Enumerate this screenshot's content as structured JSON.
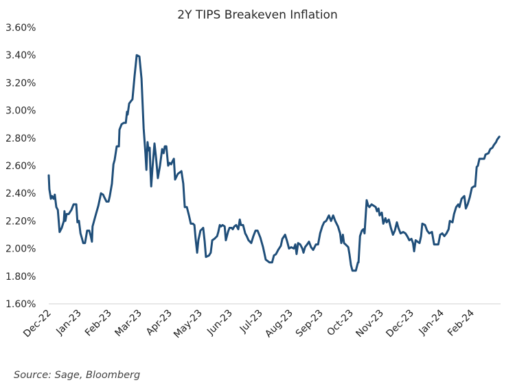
{
  "chart_data": {
    "type": "line",
    "title": "2Y TIPS Breakeven Inflation",
    "xlabel": "",
    "ylabel": "",
    "ylim": [
      1.6,
      3.6
    ],
    "y_ticks": [
      "3.60%",
      "3.40%",
      "3.20%",
      "3.00%",
      "2.80%",
      "2.60%",
      "2.40%",
      "2.20%",
      "2.00%",
      "1.80%",
      "1.60%"
    ],
    "y_tick_values": [
      3.6,
      3.4,
      3.2,
      3.0,
      2.8,
      2.6,
      2.4,
      2.2,
      2.0,
      1.8,
      1.6
    ],
    "x_ticks": [
      "Dec-22",
      "Jan-23",
      "Feb-23",
      "Mar-23",
      "Apr-23",
      "May-23",
      "Jun-23",
      "Jul-23",
      "Aug-23",
      "Sep-23",
      "Oct-23",
      "Nov-23",
      "Dec-23",
      "Jan-24",
      "Feb-24"
    ],
    "x_unit": "months since start of Dec-22",
    "xlim": [
      0,
      14.95
    ],
    "grid": false,
    "legend": "none",
    "series": [
      {
        "name": "2Y TIPS Breakeven Inflation (%)",
        "color": "#1F4E79",
        "points": [
          [
            0.0,
            2.53
          ],
          [
            0.02,
            2.43
          ],
          [
            0.05,
            2.39
          ],
          [
            0.07,
            2.36
          ],
          [
            0.11,
            2.38
          ],
          [
            0.16,
            2.36
          ],
          [
            0.2,
            2.39
          ],
          [
            0.25,
            2.3
          ],
          [
            0.3,
            2.28
          ],
          [
            0.36,
            2.12
          ],
          [
            0.43,
            2.15
          ],
          [
            0.5,
            2.2
          ],
          [
            0.52,
            2.27
          ],
          [
            0.55,
            2.2
          ],
          [
            0.59,
            2.25
          ],
          [
            0.66,
            2.25
          ],
          [
            0.75,
            2.28
          ],
          [
            0.82,
            2.32
          ],
          [
            0.91,
            2.32
          ],
          [
            0.95,
            2.19
          ],
          [
            1.0,
            2.2
          ],
          [
            1.05,
            2.11
          ],
          [
            1.09,
            2.08
          ],
          [
            1.14,
            2.04
          ],
          [
            1.2,
            2.04
          ],
          [
            1.27,
            2.13
          ],
          [
            1.34,
            2.13
          ],
          [
            1.39,
            2.09
          ],
          [
            1.43,
            2.05
          ],
          [
            1.45,
            2.16
          ],
          [
            1.55,
            2.24
          ],
          [
            1.64,
            2.31
          ],
          [
            1.73,
            2.4
          ],
          [
            1.8,
            2.39
          ],
          [
            1.84,
            2.37
          ],
          [
            1.91,
            2.34
          ],
          [
            1.98,
            2.34
          ],
          [
            2.02,
            2.38
          ],
          [
            2.09,
            2.47
          ],
          [
            2.14,
            2.61
          ],
          [
            2.18,
            2.64
          ],
          [
            2.25,
            2.74
          ],
          [
            2.32,
            2.74
          ],
          [
            2.34,
            2.86
          ],
          [
            2.41,
            2.9
          ],
          [
            2.48,
            2.91
          ],
          [
            2.55,
            2.91
          ],
          [
            2.59,
            2.99
          ],
          [
            2.61,
            2.97
          ],
          [
            2.66,
            3.05
          ],
          [
            2.73,
            3.07
          ],
          [
            2.77,
            3.08
          ],
          [
            2.84,
            3.25
          ],
          [
            2.91,
            3.4
          ],
          [
            3.0,
            3.39
          ],
          [
            3.07,
            3.23
          ],
          [
            3.14,
            2.87
          ],
          [
            3.2,
            2.69
          ],
          [
            3.23,
            2.57
          ],
          [
            3.27,
            2.77
          ],
          [
            3.3,
            2.71
          ],
          [
            3.34,
            2.73
          ],
          [
            3.36,
            2.59
          ],
          [
            3.39,
            2.45
          ],
          [
            3.43,
            2.58
          ],
          [
            3.5,
            2.76
          ],
          [
            3.55,
            2.66
          ],
          [
            3.61,
            2.51
          ],
          [
            3.68,
            2.6
          ],
          [
            3.75,
            2.72
          ],
          [
            3.8,
            2.69
          ],
          [
            3.84,
            2.74
          ],
          [
            3.89,
            2.74
          ],
          [
            3.95,
            2.6
          ],
          [
            4.0,
            2.62
          ],
          [
            4.05,
            2.61
          ],
          [
            4.09,
            2.63
          ],
          [
            4.14,
            2.65
          ],
          [
            4.18,
            2.5
          ],
          [
            4.27,
            2.54
          ],
          [
            4.39,
            2.56
          ],
          [
            4.45,
            2.47
          ],
          [
            4.5,
            2.3
          ],
          [
            4.57,
            2.3
          ],
          [
            4.64,
            2.24
          ],
          [
            4.7,
            2.18
          ],
          [
            4.77,
            2.18
          ],
          [
            4.82,
            2.17
          ],
          [
            4.86,
            2.07
          ],
          [
            4.91,
            1.97
          ],
          [
            4.95,
            2.06
          ],
          [
            5.02,
            2.13
          ],
          [
            5.11,
            2.15
          ],
          [
            5.16,
            2.05
          ],
          [
            5.2,
            1.94
          ],
          [
            5.3,
            1.95
          ],
          [
            5.36,
            1.97
          ],
          [
            5.41,
            2.06
          ],
          [
            5.48,
            2.07
          ],
          [
            5.57,
            2.09
          ],
          [
            5.61,
            2.12
          ],
          [
            5.66,
            2.17
          ],
          [
            5.7,
            2.16
          ],
          [
            5.75,
            2.17
          ],
          [
            5.82,
            2.16
          ],
          [
            5.86,
            2.06
          ],
          [
            5.93,
            2.12
          ],
          [
            5.98,
            2.15
          ],
          [
            6.05,
            2.15
          ],
          [
            6.09,
            2.14
          ],
          [
            6.14,
            2.16
          ],
          [
            6.2,
            2.17
          ],
          [
            6.27,
            2.14
          ],
          [
            6.32,
            2.21
          ],
          [
            6.36,
            2.17
          ],
          [
            6.43,
            2.17
          ],
          [
            6.5,
            2.11
          ],
          [
            6.55,
            2.09
          ],
          [
            6.61,
            2.06
          ],
          [
            6.7,
            2.04
          ],
          [
            6.77,
            2.09
          ],
          [
            6.84,
            2.13
          ],
          [
            6.91,
            2.13
          ],
          [
            7.0,
            2.08
          ],
          [
            7.09,
            2.01
          ],
          [
            7.18,
            1.92
          ],
          [
            7.3,
            1.9
          ],
          [
            7.39,
            1.9
          ],
          [
            7.45,
            1.95
          ],
          [
            7.52,
            1.96
          ],
          [
            7.59,
            1.99
          ],
          [
            7.68,
            2.02
          ],
          [
            7.73,
            2.07
          ],
          [
            7.82,
            2.1
          ],
          [
            7.89,
            2.05
          ],
          [
            7.95,
            2.0
          ],
          [
            8.02,
            2.01
          ],
          [
            8.11,
            2.0
          ],
          [
            8.16,
            2.03
          ],
          [
            8.2,
            1.96
          ],
          [
            8.25,
            2.04
          ],
          [
            8.32,
            2.03
          ],
          [
            8.39,
            2.0
          ],
          [
            8.43,
            1.97
          ],
          [
            8.48,
            2.01
          ],
          [
            8.55,
            2.03
          ],
          [
            8.61,
            2.05
          ],
          [
            8.68,
            2.01
          ],
          [
            8.75,
            1.99
          ],
          [
            8.84,
            2.03
          ],
          [
            8.91,
            2.03
          ],
          [
            8.98,
            2.11
          ],
          [
            9.05,
            2.16
          ],
          [
            9.11,
            2.19
          ],
          [
            9.18,
            2.2
          ],
          [
            9.27,
            2.24
          ],
          [
            9.34,
            2.2
          ],
          [
            9.41,
            2.24
          ],
          [
            9.48,
            2.2
          ],
          [
            9.57,
            2.16
          ],
          [
            9.64,
            2.11
          ],
          [
            9.68,
            2.04
          ],
          [
            9.73,
            2.1
          ],
          [
            9.77,
            2.04
          ],
          [
            9.82,
            2.03
          ],
          [
            9.91,
            2.01
          ],
          [
            9.95,
            1.96
          ],
          [
            10.0,
            1.88
          ],
          [
            10.05,
            1.84
          ],
          [
            10.16,
            1.84
          ],
          [
            10.23,
            1.9
          ],
          [
            10.25,
            1.9
          ],
          [
            10.3,
            2.09
          ],
          [
            10.36,
            2.13
          ],
          [
            10.41,
            2.14
          ],
          [
            10.45,
            2.11
          ],
          [
            10.52,
            2.35
          ],
          [
            10.57,
            2.31
          ],
          [
            10.61,
            2.3
          ],
          [
            10.68,
            2.32
          ],
          [
            10.75,
            2.31
          ],
          [
            10.82,
            2.3
          ],
          [
            10.86,
            2.27
          ],
          [
            10.91,
            2.29
          ],
          [
            10.95,
            2.24
          ],
          [
            11.02,
            2.26
          ],
          [
            11.07,
            2.18
          ],
          [
            11.14,
            2.22
          ],
          [
            11.18,
            2.19
          ],
          [
            11.25,
            2.21
          ],
          [
            11.32,
            2.15
          ],
          [
            11.39,
            2.1
          ],
          [
            11.45,
            2.13
          ],
          [
            11.52,
            2.19
          ],
          [
            11.57,
            2.15
          ],
          [
            11.64,
            2.11
          ],
          [
            11.73,
            2.12
          ],
          [
            11.8,
            2.11
          ],
          [
            11.86,
            2.09
          ],
          [
            11.93,
            2.06
          ],
          [
            12.0,
            2.07
          ],
          [
            12.05,
            2.04
          ],
          [
            12.09,
            1.98
          ],
          [
            12.14,
            2.06
          ],
          [
            12.2,
            2.05
          ],
          [
            12.27,
            2.04
          ],
          [
            12.32,
            2.09
          ],
          [
            12.36,
            2.18
          ],
          [
            12.45,
            2.17
          ],
          [
            12.52,
            2.13
          ],
          [
            12.59,
            2.11
          ],
          [
            12.68,
            2.12
          ],
          [
            12.75,
            2.03
          ],
          [
            12.84,
            2.03
          ],
          [
            12.89,
            2.03
          ],
          [
            12.95,
            2.1
          ],
          [
            13.02,
            2.11
          ],
          [
            13.09,
            2.09
          ],
          [
            13.16,
            2.11
          ],
          [
            13.23,
            2.14
          ],
          [
            13.27,
            2.2
          ],
          [
            13.36,
            2.19
          ],
          [
            13.41,
            2.25
          ],
          [
            13.48,
            2.3
          ],
          [
            13.55,
            2.32
          ],
          [
            13.59,
            2.3
          ],
          [
            13.66,
            2.36
          ],
          [
            13.7,
            2.37
          ],
          [
            13.75,
            2.38
          ],
          [
            13.8,
            2.29
          ],
          [
            13.86,
            2.32
          ],
          [
            13.93,
            2.37
          ],
          [
            14.0,
            2.44
          ],
          [
            14.07,
            2.45
          ],
          [
            14.11,
            2.45
          ],
          [
            14.16,
            2.59
          ],
          [
            14.2,
            2.6
          ],
          [
            14.25,
            2.65
          ],
          [
            14.34,
            2.65
          ],
          [
            14.41,
            2.65
          ],
          [
            14.45,
            2.68
          ],
          [
            14.55,
            2.69
          ],
          [
            14.61,
            2.72
          ],
          [
            14.68,
            2.73
          ],
          [
            14.73,
            2.75
          ],
          [
            14.8,
            2.77
          ],
          [
            14.84,
            2.79
          ],
          [
            14.91,
            2.81
          ]
        ]
      }
    ],
    "source": "Source: Sage, Bloomberg"
  }
}
